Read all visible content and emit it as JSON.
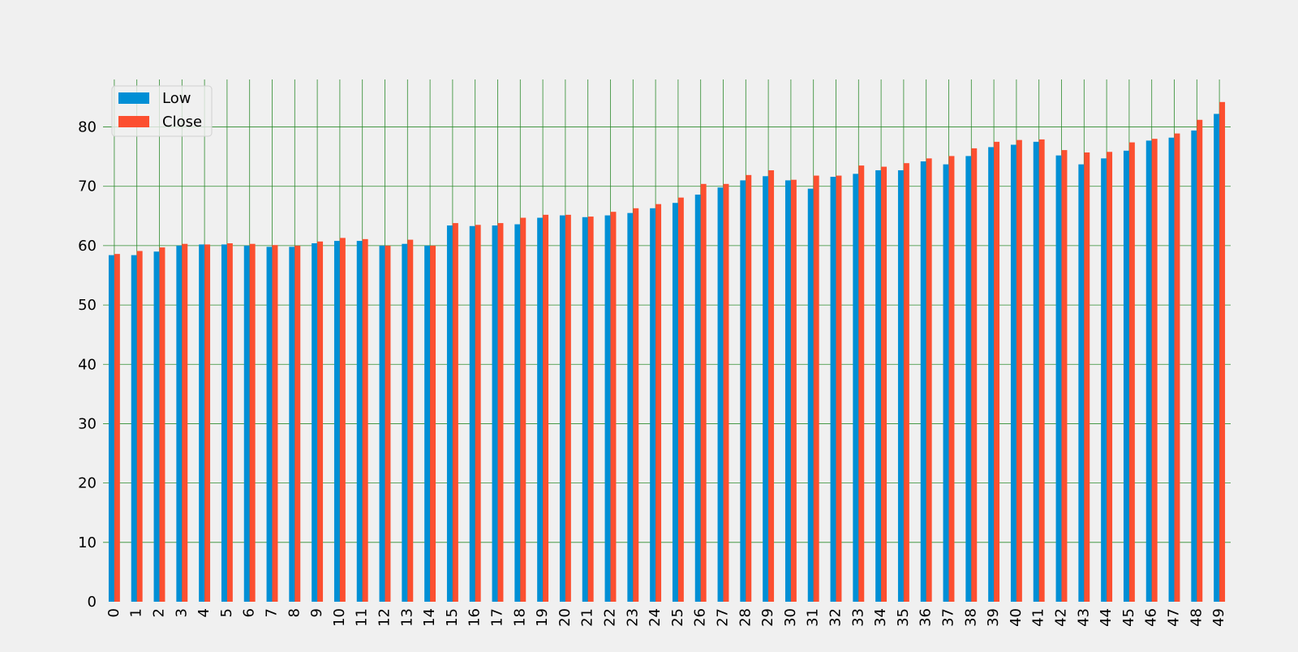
{
  "chart_data": {
    "type": "bar",
    "title": "",
    "xlabel": "",
    "ylabel": "",
    "ylim": [
      0,
      88
    ],
    "y_ticks": [
      0,
      10,
      20,
      30,
      40,
      50,
      60,
      70,
      80
    ],
    "categories": [
      "0",
      "1",
      "2",
      "3",
      "4",
      "5",
      "6",
      "7",
      "8",
      "9",
      "10",
      "11",
      "12",
      "13",
      "14",
      "15",
      "16",
      "17",
      "18",
      "19",
      "20",
      "21",
      "22",
      "23",
      "24",
      "25",
      "26",
      "27",
      "28",
      "29",
      "30",
      "31",
      "32",
      "33",
      "34",
      "35",
      "36",
      "37",
      "38",
      "39",
      "40",
      "41",
      "42",
      "43",
      "44",
      "45",
      "46",
      "47",
      "48",
      "49"
    ],
    "series": [
      {
        "name": "Low",
        "color": "#008fd5",
        "values": [
          58.4,
          58.4,
          59.0,
          60.0,
          60.2,
          60.2,
          60.0,
          59.8,
          59.8,
          60.4,
          60.8,
          60.8,
          60.0,
          60.3,
          60.0,
          63.4,
          63.3,
          63.4,
          63.6,
          64.7,
          65.1,
          64.8,
          65.1,
          65.5,
          66.3,
          67.2,
          68.6,
          69.8,
          71.0,
          71.7,
          71.0,
          69.6,
          71.6,
          72.1,
          72.7,
          72.7,
          74.2,
          73.7,
          75.1,
          76.6,
          77.0,
          77.5,
          75.2,
          73.7,
          74.7,
          76.0,
          77.7,
          78.2,
          79.4,
          82.2
        ]
      },
      {
        "name": "Close",
        "color": "#fc4f30",
        "values": [
          58.6,
          59.1,
          59.7,
          60.3,
          60.2,
          60.4,
          60.3,
          60.1,
          60.0,
          60.7,
          61.3,
          61.1,
          60.0,
          61.0,
          60.0,
          63.8,
          63.5,
          63.8,
          64.7,
          65.2,
          65.2,
          64.9,
          65.7,
          66.3,
          67.0,
          68.1,
          70.4,
          70.4,
          71.9,
          72.7,
          71.1,
          71.8,
          71.8,
          73.5,
          73.3,
          73.9,
          74.7,
          75.1,
          76.4,
          77.5,
          77.8,
          77.9,
          76.1,
          75.7,
          75.8,
          77.4,
          78.0,
          78.9,
          81.2,
          84.2
        ]
      }
    ],
    "grid": true,
    "grid_color": "#2e8b2e",
    "legend_position": "top-left"
  }
}
